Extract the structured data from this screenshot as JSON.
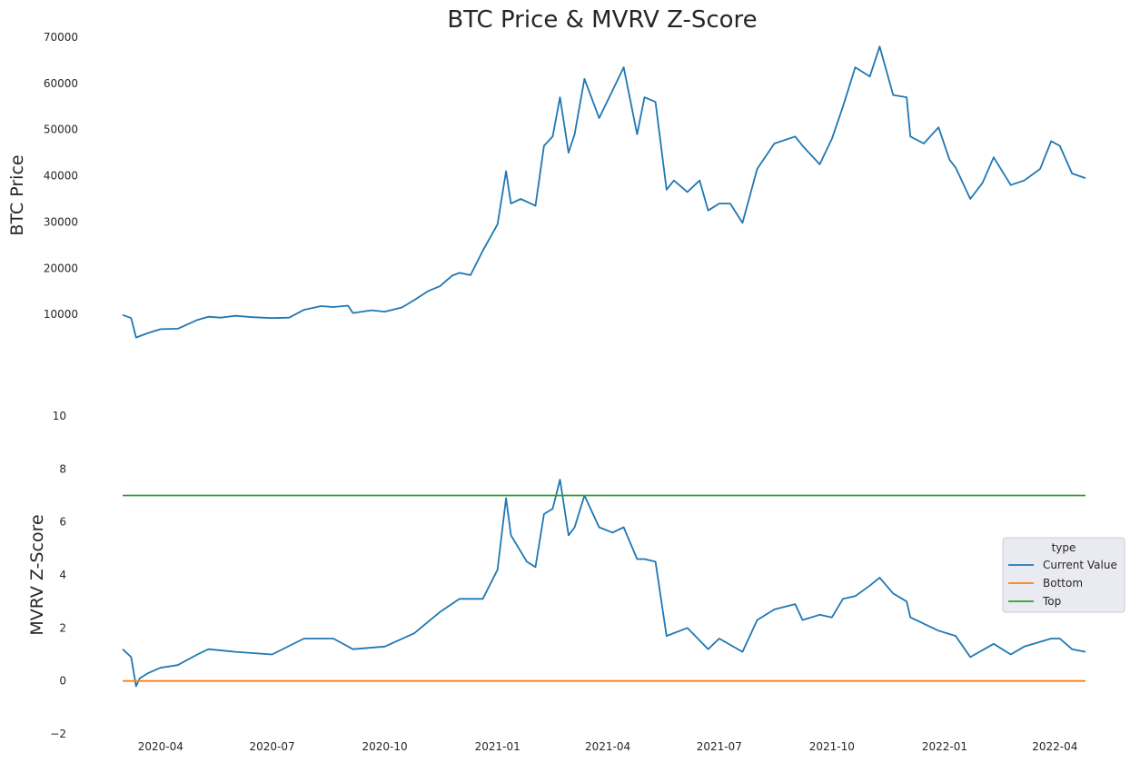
{
  "chart_data": [
    {
      "type": "line",
      "title": "BTC Price & MVRV Z-Score",
      "xlabel": "",
      "ylabel": "BTC  Price",
      "ylim": [
        0,
        70000
      ],
      "yticks": [
        10000,
        20000,
        30000,
        40000,
        50000,
        60000,
        70000
      ],
      "xticks": [
        "2020-04",
        "2020-07",
        "2020-10",
        "2021-01",
        "2021-04",
        "2021-07",
        "2021-10",
        "2022-01",
        "2022-04"
      ],
      "xrange": [
        "2020-03-01",
        "2022-04-26"
      ],
      "grid": false,
      "series": [
        {
          "color": "#1f77b4",
          "x": [
            "2020-03-01",
            "2020-03-08",
            "2020-03-12",
            "2020-03-15",
            "2020-03-22",
            "2020-04-01",
            "2020-04-15",
            "2020-05-01",
            "2020-05-10",
            "2020-05-20",
            "2020-06-01",
            "2020-06-15",
            "2020-07-01",
            "2020-07-15",
            "2020-07-27",
            "2020-08-10",
            "2020-08-20",
            "2020-09-01",
            "2020-09-05",
            "2020-09-20",
            "2020-10-01",
            "2020-10-15",
            "2020-10-25",
            "2020-11-05",
            "2020-11-15",
            "2020-11-25",
            "2020-12-01",
            "2020-12-10",
            "2020-12-20",
            "2021-01-01",
            "2021-01-08",
            "2021-01-12",
            "2021-01-20",
            "2021-02-01",
            "2021-02-08",
            "2021-02-15",
            "2021-02-21",
            "2021-02-28",
            "2021-03-05",
            "2021-03-13",
            "2021-03-25",
            "2021-04-05",
            "2021-04-14",
            "2021-04-25",
            "2021-05-01",
            "2021-05-10",
            "2021-05-19",
            "2021-05-25",
            "2021-06-05",
            "2021-06-15",
            "2021-06-22",
            "2021-07-01",
            "2021-07-10",
            "2021-07-20",
            "2021-08-01",
            "2021-08-15",
            "2021-09-01",
            "2021-09-07",
            "2021-09-21",
            "2021-10-01",
            "2021-10-10",
            "2021-10-20",
            "2021-11-01",
            "2021-11-09",
            "2021-11-20",
            "2021-12-01",
            "2021-12-04",
            "2021-12-15",
            "2021-12-27",
            "2022-01-05",
            "2022-01-10",
            "2022-01-22",
            "2022-02-01",
            "2022-02-10",
            "2022-02-24",
            "2022-03-07",
            "2022-03-20",
            "2022-03-29",
            "2022-04-05",
            "2022-04-15",
            "2022-04-26"
          ],
          "values": [
            9900,
            9200,
            5000,
            5300,
            6000,
            6800,
            6900,
            8800,
            9500,
            9300,
            9700,
            9400,
            9200,
            9300,
            11000,
            11800,
            11600,
            11900,
            10300,
            10900,
            10600,
            11500,
            13100,
            15000,
            16100,
            18400,
            19000,
            18500,
            23800,
            29500,
            41000,
            34000,
            35000,
            33500,
            46500,
            48500,
            57000,
            45000,
            49000,
            61000,
            52500,
            58500,
            63500,
            49000,
            57000,
            56000,
            37000,
            39000,
            36500,
            39000,
            32500,
            34000,
            34000,
            29800,
            41500,
            47000,
            48500,
            46500,
            42500,
            48000,
            55000,
            63500,
            61500,
            68000,
            57500,
            57000,
            48500,
            47000,
            50500,
            43500,
            41800,
            35000,
            38500,
            44000,
            38000,
            39000,
            41500,
            47500,
            46500,
            40500,
            39500
          ]
        }
      ]
    },
    {
      "type": "line",
      "title": "",
      "xlabel": "",
      "ylabel": "MVRV Z-Score",
      "ylim": [
        -2,
        10
      ],
      "yticks": [
        -2,
        0,
        2,
        4,
        6,
        8,
        10
      ],
      "xticks": [
        "2020-04",
        "2020-07",
        "2020-10",
        "2021-01",
        "2021-04",
        "2021-07",
        "2021-10",
        "2022-01",
        "2022-04"
      ],
      "xrange": [
        "2020-03-01",
        "2022-04-26"
      ],
      "grid": false,
      "legend": {
        "title": "type",
        "placement": "right"
      },
      "series": [
        {
          "name": "Current Value",
          "color": "#1f77b4",
          "x": [
            "2020-03-01",
            "2020-03-08",
            "2020-03-12",
            "2020-03-15",
            "2020-03-22",
            "2020-04-01",
            "2020-04-15",
            "2020-05-01",
            "2020-05-10",
            "2020-06-01",
            "2020-07-01",
            "2020-07-27",
            "2020-08-20",
            "2020-09-05",
            "2020-10-01",
            "2020-10-25",
            "2020-11-15",
            "2020-12-01",
            "2020-12-20",
            "2021-01-01",
            "2021-01-08",
            "2021-01-12",
            "2021-01-25",
            "2021-02-01",
            "2021-02-08",
            "2021-02-15",
            "2021-02-21",
            "2021-02-28",
            "2021-03-05",
            "2021-03-13",
            "2021-03-25",
            "2021-04-05",
            "2021-04-14",
            "2021-04-25",
            "2021-05-01",
            "2021-05-10",
            "2021-05-19",
            "2021-06-05",
            "2021-06-22",
            "2021-07-01",
            "2021-07-20",
            "2021-08-01",
            "2021-08-15",
            "2021-09-01",
            "2021-09-07",
            "2021-09-21",
            "2021-10-01",
            "2021-10-10",
            "2021-10-20",
            "2021-11-01",
            "2021-11-09",
            "2021-11-20",
            "2021-12-01",
            "2021-12-04",
            "2021-12-27",
            "2022-01-10",
            "2022-01-22",
            "2022-02-10",
            "2022-02-24",
            "2022-03-07",
            "2022-03-29",
            "2022-04-05",
            "2022-04-15",
            "2022-04-26"
          ],
          "values": [
            1.2,
            0.9,
            -0.2,
            0.1,
            0.3,
            0.5,
            0.6,
            1.0,
            1.2,
            1.1,
            1.0,
            1.6,
            1.6,
            1.2,
            1.3,
            1.8,
            2.6,
            3.1,
            3.1,
            4.2,
            6.9,
            5.5,
            4.5,
            4.3,
            6.3,
            6.5,
            7.6,
            5.5,
            5.8,
            7.0,
            5.8,
            5.6,
            5.8,
            4.6,
            4.6,
            4.5,
            1.7,
            2.0,
            1.2,
            1.6,
            1.1,
            2.3,
            2.7,
            2.9,
            2.3,
            2.5,
            2.4,
            3.1,
            3.2,
            3.6,
            3.9,
            3.3,
            3.0,
            2.4,
            1.9,
            1.7,
            0.9,
            1.4,
            1.0,
            1.3,
            1.6,
            1.6,
            1.2,
            1.1
          ]
        },
        {
          "name": "Bottom",
          "color": "#ff7f0e",
          "constant": 0
        },
        {
          "name": "Top",
          "color": "#2ca02c",
          "constant": 7
        }
      ]
    }
  ]
}
